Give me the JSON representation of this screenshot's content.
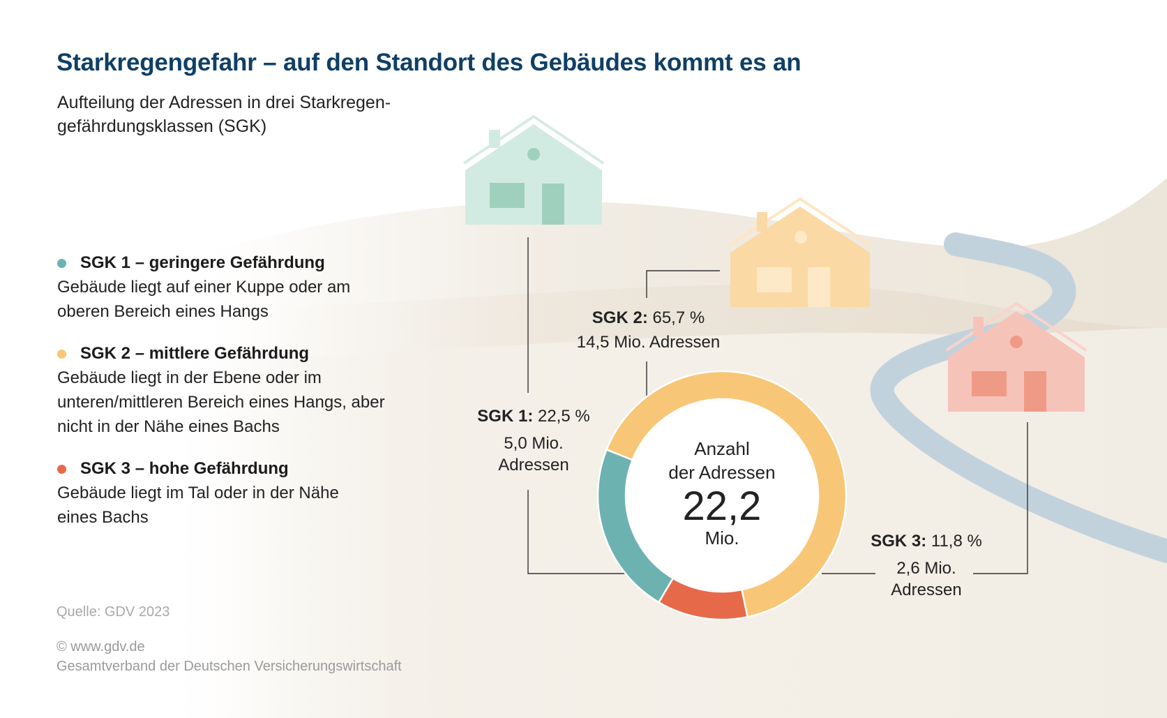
{
  "title": "Starkregengefahr – auf den Standort des Gebäudes kommt es an",
  "subtitle": "Aufteilung der Adressen in drei Starkregen-gefährdungsklassen (SGK)",
  "legend": [
    {
      "label": "SGK 1 – geringere Gefährdung",
      "desc": "Gebäude liegt auf einer Kuppe oder am oberen Bereich eines Hangs",
      "color": "#6cb2b0"
    },
    {
      "label": "SGK 2 – mittlere Gefährdung",
      "desc": "Gebäude liegt in der Ebene oder im unteren/mittleren Bereich eines Hangs, aber nicht in der Nähe eines Bachs",
      "color": "#f8c677"
    },
    {
      "label": "SGK 3 – hohe Gefährdung",
      "desc": "Gebäude liegt im Tal oder in der Nähe eines Bachs",
      "color": "#e66a4a"
    }
  ],
  "center": {
    "caption_line1": "Anzahl",
    "caption_line2": "der Adressen",
    "value": "22,2",
    "unit": "Mio."
  },
  "labels": {
    "sgk1": {
      "name": "SGK 1:",
      "pct": "22,5 %",
      "line1": "5,0 Mio.",
      "line2": "Adressen"
    },
    "sgk2": {
      "name": "SGK 2:",
      "pct": "65,7 %",
      "line1": "14,5 Mio. Adressen"
    },
    "sgk3": {
      "name": "SGK 3:",
      "pct": "11,8 %",
      "line1": "2,6 Mio.",
      "line2": "Adressen"
    }
  },
  "source": "Quelle: GDV 2023",
  "footer": {
    "line1": "© www.gdv.de",
    "line2": "Gesamtverband der Deutschen Versicherungswirtschaft"
  },
  "chart_data": {
    "type": "pie",
    "categories": [
      "SGK 1",
      "SGK 2",
      "SGK 3"
    ],
    "values": [
      22.5,
      65.7,
      11.8
    ],
    "absolute_millions": [
      5.0,
      14.5,
      2.6
    ],
    "total_millions": 22.2,
    "colors": [
      "#6cb2b0",
      "#f8c677",
      "#e66a4a"
    ],
    "title": "Starkregengefahr – auf den Standort des Gebäudes kommt es an"
  }
}
